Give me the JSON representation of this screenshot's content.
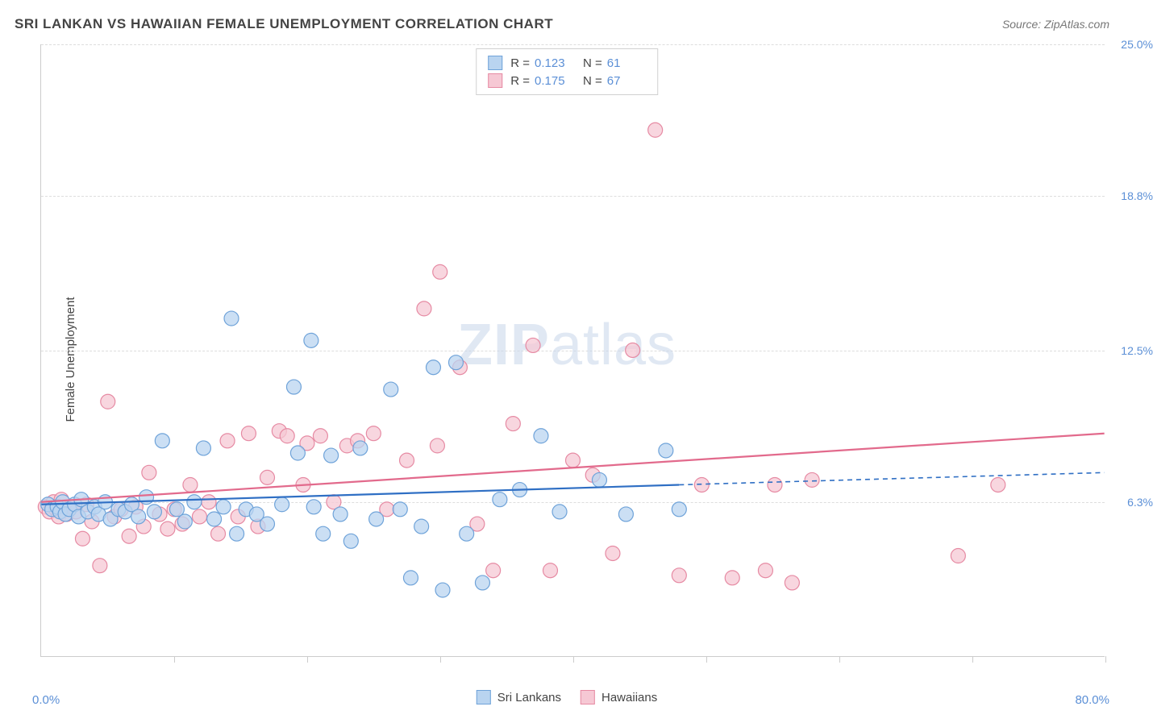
{
  "title": "SRI LANKAN VS HAWAIIAN FEMALE UNEMPLOYMENT CORRELATION CHART",
  "source": "Source: ZipAtlas.com",
  "watermark_zip": "ZIP",
  "watermark_atlas": "atlas",
  "y_axis_label": "Female Unemployment",
  "chart": {
    "type": "scatter",
    "xlim": [
      0,
      80
    ],
    "ylim": [
      0,
      25
    ],
    "x_min_label": "0.0%",
    "x_max_label": "80.0%",
    "y_ticks": [
      6.3,
      12.5,
      18.8,
      25.0
    ],
    "y_tick_labels": [
      "6.3%",
      "12.5%",
      "18.8%",
      "25.0%"
    ],
    "x_tick_positions": [
      0,
      10,
      20,
      30,
      40,
      50,
      60,
      70,
      80
    ],
    "background_color": "#ffffff",
    "grid_color": "#dddddd",
    "axis_color": "#cccccc",
    "marker_radius": 9,
    "marker_stroke_width": 1.2,
    "trend_line_width": 2.2
  },
  "series": [
    {
      "name": "Sri Lankans",
      "fill": "#b9d4f0",
      "stroke": "#6fa3d9",
      "trend_color": "#2f6fc4",
      "r_value": "0.123",
      "n_value": "61",
      "trend": {
        "x1": 0,
        "y1": 6.2,
        "x2": 48,
        "y2": 7.0,
        "dash_x2": 80,
        "dash_y2": 7.5
      },
      "points": [
        [
          0.5,
          6.2
        ],
        [
          0.8,
          6.0
        ],
        [
          1.2,
          6.1
        ],
        [
          1.4,
          5.9
        ],
        [
          1.6,
          6.3
        ],
        [
          1.8,
          5.8
        ],
        [
          2.1,
          6.0
        ],
        [
          2.5,
          6.2
        ],
        [
          2.8,
          5.7
        ],
        [
          3.0,
          6.4
        ],
        [
          3.5,
          5.9
        ],
        [
          4.0,
          6.1
        ],
        [
          4.3,
          5.8
        ],
        [
          4.8,
          6.3
        ],
        [
          5.2,
          5.6
        ],
        [
          5.8,
          6.0
        ],
        [
          6.3,
          5.9
        ],
        [
          6.8,
          6.2
        ],
        [
          7.3,
          5.7
        ],
        [
          7.9,
          6.5
        ],
        [
          8.5,
          5.9
        ],
        [
          9.1,
          8.8
        ],
        [
          10.2,
          6.0
        ],
        [
          10.8,
          5.5
        ],
        [
          11.5,
          6.3
        ],
        [
          12.2,
          8.5
        ],
        [
          13.0,
          5.6
        ],
        [
          13.7,
          6.1
        ],
        [
          14.3,
          13.8
        ],
        [
          14.7,
          5.0
        ],
        [
          15.4,
          6.0
        ],
        [
          16.2,
          5.8
        ],
        [
          17.0,
          5.4
        ],
        [
          18.1,
          6.2
        ],
        [
          19.0,
          11.0
        ],
        [
          19.3,
          8.3
        ],
        [
          20.3,
          12.9
        ],
        [
          20.5,
          6.1
        ],
        [
          21.2,
          5.0
        ],
        [
          21.8,
          8.2
        ],
        [
          22.5,
          5.8
        ],
        [
          23.3,
          4.7
        ],
        [
          24.0,
          8.5
        ],
        [
          25.2,
          5.6
        ],
        [
          26.3,
          10.9
        ],
        [
          27.0,
          6.0
        ],
        [
          27.8,
          3.2
        ],
        [
          28.6,
          5.3
        ],
        [
          29.5,
          11.8
        ],
        [
          30.2,
          2.7
        ],
        [
          31.2,
          12.0
        ],
        [
          32.0,
          5.0
        ],
        [
          33.2,
          3.0
        ],
        [
          34.5,
          6.4
        ],
        [
          36.0,
          6.8
        ],
        [
          37.6,
          9.0
        ],
        [
          39.0,
          5.9
        ],
        [
          42.0,
          7.2
        ],
        [
          44.0,
          5.8
        ],
        [
          47.0,
          8.4
        ],
        [
          48.0,
          6.0
        ]
      ]
    },
    {
      "name": "Hawaiians",
      "fill": "#f6c8d4",
      "stroke": "#e68aa3",
      "trend_color": "#e26a8c",
      "r_value": "0.175",
      "n_value": "67",
      "trend": {
        "x1": 0,
        "y1": 6.3,
        "x2": 80,
        "y2": 9.1
      },
      "points": [
        [
          0.3,
          6.1
        ],
        [
          0.6,
          5.9
        ],
        [
          0.9,
          6.3
        ],
        [
          1.1,
          6.0
        ],
        [
          1.3,
          5.7
        ],
        [
          1.5,
          6.4
        ],
        [
          1.9,
          5.8
        ],
        [
          2.2,
          6.1
        ],
        [
          2.6,
          5.9
        ],
        [
          3.1,
          4.8
        ],
        [
          3.4,
          6.2
        ],
        [
          3.8,
          5.5
        ],
        [
          4.4,
          3.7
        ],
        [
          5.0,
          10.4
        ],
        [
          5.5,
          5.7
        ],
        [
          6.0,
          6.0
        ],
        [
          6.6,
          4.9
        ],
        [
          7.1,
          6.1
        ],
        [
          7.7,
          5.3
        ],
        [
          8.1,
          7.5
        ],
        [
          8.9,
          5.8
        ],
        [
          9.5,
          5.2
        ],
        [
          10.0,
          6.0
        ],
        [
          10.6,
          5.4
        ],
        [
          11.2,
          7.0
        ],
        [
          11.9,
          5.7
        ],
        [
          12.6,
          6.3
        ],
        [
          13.3,
          5.0
        ],
        [
          14.0,
          8.8
        ],
        [
          14.8,
          5.7
        ],
        [
          15.6,
          9.1
        ],
        [
          16.3,
          5.3
        ],
        [
          17.0,
          7.3
        ],
        [
          17.9,
          9.2
        ],
        [
          18.5,
          9.0
        ],
        [
          19.7,
          7.0
        ],
        [
          20.0,
          8.7
        ],
        [
          21.0,
          9.0
        ],
        [
          22.0,
          6.3
        ],
        [
          23.0,
          8.6
        ],
        [
          23.8,
          8.8
        ],
        [
          25.0,
          9.1
        ],
        [
          26.0,
          6.0
        ],
        [
          27.5,
          8.0
        ],
        [
          28.8,
          14.2
        ],
        [
          29.8,
          8.6
        ],
        [
          30.0,
          15.7
        ],
        [
          31.5,
          11.8
        ],
        [
          32.8,
          5.4
        ],
        [
          34.0,
          3.5
        ],
        [
          35.5,
          9.5
        ],
        [
          37.0,
          12.7
        ],
        [
          38.3,
          3.5
        ],
        [
          40.0,
          8.0
        ],
        [
          41.5,
          7.4
        ],
        [
          43.0,
          4.2
        ],
        [
          44.5,
          12.5
        ],
        [
          46.2,
          21.5
        ],
        [
          48.0,
          3.3
        ],
        [
          49.7,
          7.0
        ],
        [
          52.0,
          3.2
        ],
        [
          54.5,
          3.5
        ],
        [
          55.2,
          7.0
        ],
        [
          56.5,
          3.0
        ],
        [
          58.0,
          7.2
        ],
        [
          69.0,
          4.1
        ],
        [
          72.0,
          7.0
        ]
      ]
    }
  ],
  "legend_top": {
    "r_label": "R =",
    "n_label": "N ="
  },
  "legend_bottom": {
    "items": [
      "Sri Lankans",
      "Hawaiians"
    ]
  }
}
